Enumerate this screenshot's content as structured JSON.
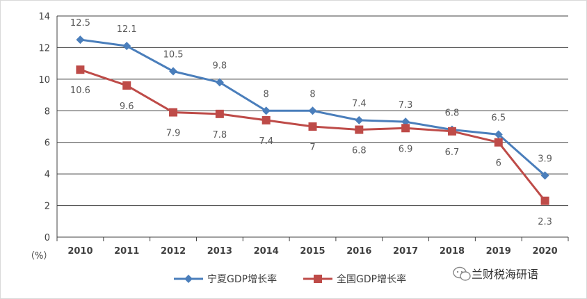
{
  "chart_data": {
    "type": "line",
    "title": "",
    "xlabel": "",
    "ylabel": "（%）",
    "categories": [
      "2010",
      "2011",
      "2012",
      "2013",
      "2014",
      "2015",
      "2016",
      "2017",
      "2018",
      "2019",
      "2020"
    ],
    "ylim": [
      0,
      14
    ],
    "yticks": [
      0,
      2,
      4,
      6,
      8,
      10,
      12,
      14
    ],
    "grid": true,
    "legend_position": "bottom",
    "series": [
      {
        "name": "宁夏GDP增长率",
        "color": "#4a7ebb",
        "marker": "diamond",
        "values": [
          12.5,
          12.1,
          10.5,
          9.8,
          8,
          8,
          7.4,
          7.3,
          6.8,
          6.5,
          3.9
        ],
        "labels": [
          "12.5",
          "12.1",
          "10.5",
          "9.8",
          "8",
          "8",
          "7.4",
          "7.3",
          "6.8",
          "6.5",
          "3.9"
        ]
      },
      {
        "name": "全国GDP增长率",
        "color": "#be4b48",
        "marker": "square",
        "values": [
          10.6,
          9.6,
          7.9,
          7.8,
          7.4,
          7,
          6.8,
          6.9,
          6.7,
          6,
          2.3
        ],
        "labels": [
          "10.6",
          "9.6",
          "7.9",
          "7.8",
          "7.4",
          "7",
          "6.8",
          "6.9",
          "6.7",
          "6",
          "2.3"
        ]
      }
    ]
  },
  "watermark": {
    "text": "兰财税海研语",
    "icon": "wechat-icon"
  }
}
